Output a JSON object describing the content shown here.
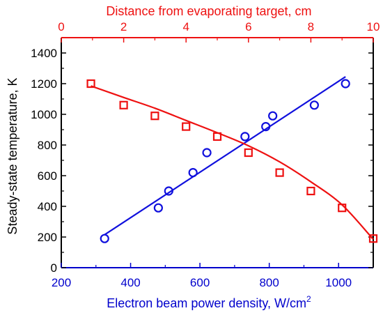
{
  "chart_data": {
    "type": "scatter",
    "title": "",
    "ylabel": "Steady-state temperature, K",
    "xlabel_bottom": "Electron beam power density, W/cm",
    "xlabel_bottom_superscript": "2",
    "xlabel_top": "Distance from evaporating target, cm",
    "xlim_bottom": [
      200,
      1100
    ],
    "xlim_top": [
      0,
      10
    ],
    "ylim": [
      0,
      1500
    ],
    "xticks_bottom": [
      200,
      400,
      600,
      800,
      1000
    ],
    "xticks_top": [
      0,
      2,
      4,
      6,
      8,
      10
    ],
    "yticks": [
      0,
      200,
      400,
      600,
      800,
      1000,
      1200,
      1400
    ],
    "grid": false,
    "colors": {
      "bottom_axis": "#0000cc",
      "top_axis": "#ee1111",
      "left_axis": "#000000"
    },
    "series": [
      {
        "axis": "bottom",
        "marker": "circle",
        "color": "#1010dd",
        "points": [
          [
            325,
            190
          ],
          [
            480,
            390
          ],
          [
            510,
            500
          ],
          [
            580,
            620
          ],
          [
            620,
            750
          ],
          [
            730,
            855
          ],
          [
            790,
            920
          ],
          [
            810,
            990
          ],
          [
            930,
            1060
          ],
          [
            1020,
            1200
          ]
        ],
        "fit": {
          "kind": "linear",
          "x0": 325,
          "y0": 215,
          "x1": 1020,
          "y1": 1245
        }
      },
      {
        "axis": "top",
        "marker": "square",
        "color": "#ee1111",
        "points": [
          [
            0.95,
            1200
          ],
          [
            2.0,
            1060
          ],
          [
            3.0,
            990
          ],
          [
            4.0,
            920
          ],
          [
            5.0,
            855
          ],
          [
            6.0,
            750
          ],
          [
            7.0,
            620
          ],
          [
            8.0,
            500
          ],
          [
            9.0,
            390
          ],
          [
            10.0,
            190
          ]
        ],
        "fit": {
          "kind": "curve",
          "points": [
            [
              0.95,
              1185
            ],
            [
              2.0,
              1110
            ],
            [
              3.0,
              1040
            ],
            [
              4.0,
              960
            ],
            [
              5.0,
              880
            ],
            [
              6.0,
              795
            ],
            [
              7.0,
              690
            ],
            [
              8.0,
              560
            ],
            [
              9.0,
              410
            ],
            [
              10.0,
              185
            ]
          ]
        }
      }
    ]
  }
}
